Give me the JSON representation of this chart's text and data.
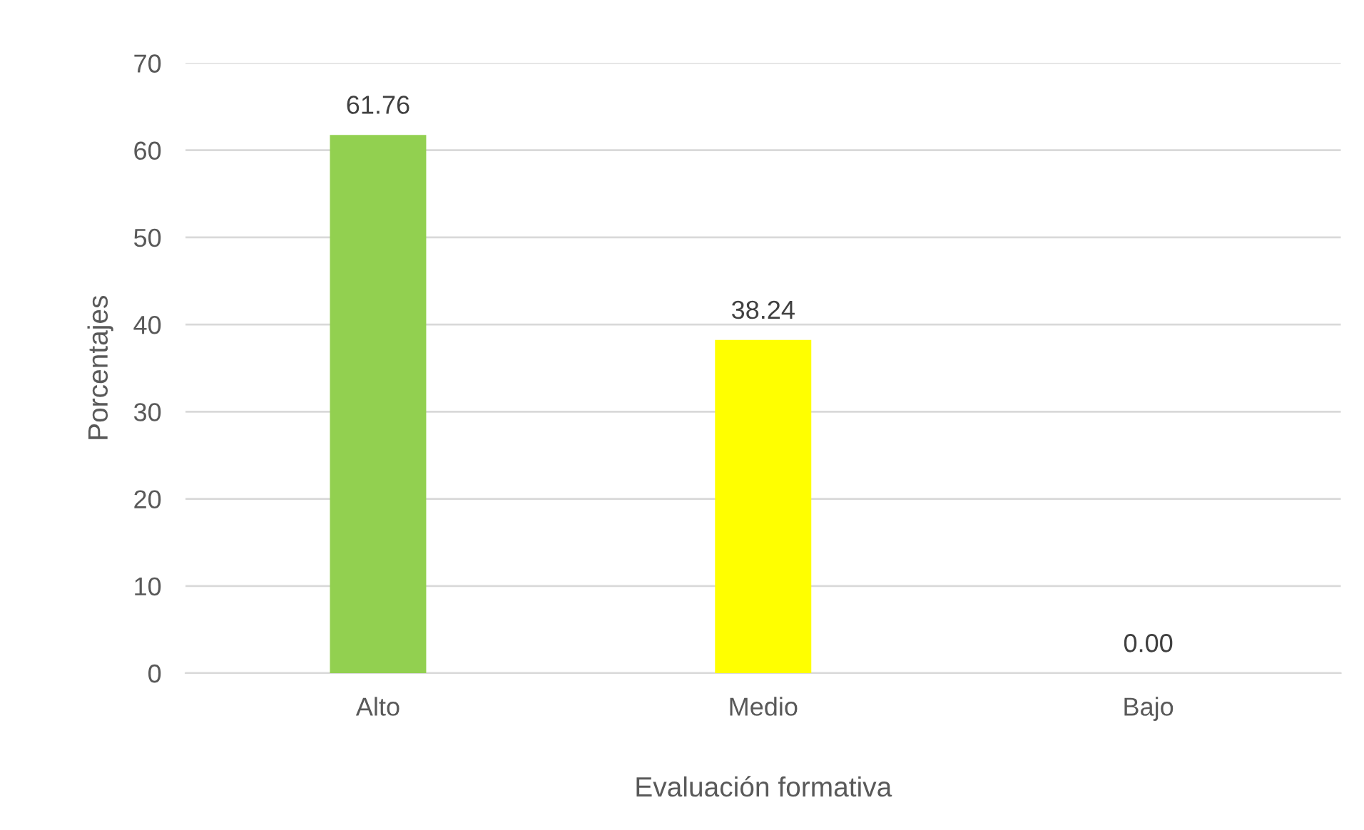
{
  "chart_data": {
    "type": "bar",
    "xlabel": "Evaluación formativa",
    "ylabel": "Porcentajes",
    "categories": [
      "Alto",
      "Medio",
      "Bajo"
    ],
    "values": [
      61.76,
      38.24,
      0.0
    ],
    "value_labels": [
      "61.76",
      "38.24",
      "0.00"
    ],
    "colors": [
      "#92d050",
      "#ffff00",
      "#a5a5a5"
    ],
    "ylim": [
      0,
      70
    ],
    "yticks": [
      0,
      10,
      20,
      30,
      40,
      50,
      60,
      70
    ],
    "grid": "y",
    "legend": false
  }
}
